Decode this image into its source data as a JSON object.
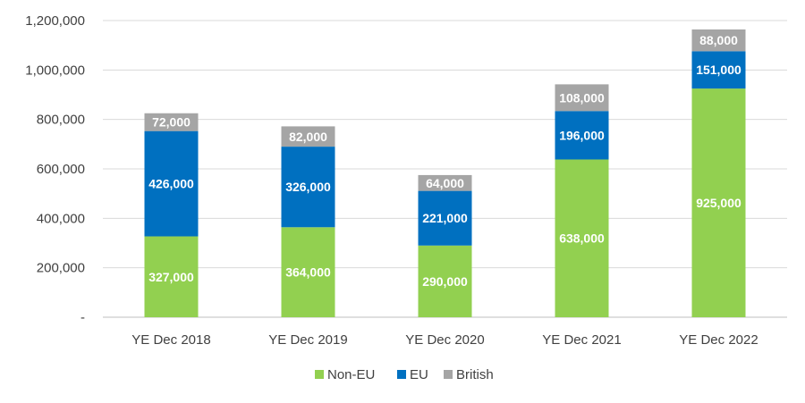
{
  "chart_data": {
    "type": "bar",
    "stacked": true,
    "categories": [
      "YE Dec 2018",
      "YE Dec 2019",
      "YE Dec 2020",
      "YE Dec 2021",
      "YE Dec 2022"
    ],
    "series": [
      {
        "name": "Non-EU",
        "color": "#92D050",
        "values": [
          327000,
          364000,
          290000,
          638000,
          925000
        ],
        "labels": [
          "327,000",
          "364,000",
          "290,000",
          "638,000",
          "925,000"
        ]
      },
      {
        "name": "EU",
        "color": "#0070C0",
        "values": [
          426000,
          326000,
          221000,
          196000,
          151000
        ],
        "labels": [
          "426,000",
          "326,000",
          "221,000",
          "196,000",
          "151,000"
        ]
      },
      {
        "name": "British",
        "color": "#A5A5A5",
        "values": [
          72000,
          82000,
          64000,
          108000,
          88000
        ],
        "labels": [
          "72,000",
          "82,000",
          "64,000",
          "108,000",
          "88,000"
        ]
      }
    ],
    "ylim": [
      0,
      1200000
    ],
    "yticks": [
      0,
      200000,
      400000,
      600000,
      800000,
      1000000,
      1200000
    ],
    "ytick_labels": [
      "-",
      "200,000",
      "400,000",
      "600,000",
      "800,000",
      "1,000,000",
      "1,200,000"
    ],
    "grid": true,
    "legend_position": "bottom",
    "title": "",
    "xlabel": "",
    "ylabel": ""
  }
}
